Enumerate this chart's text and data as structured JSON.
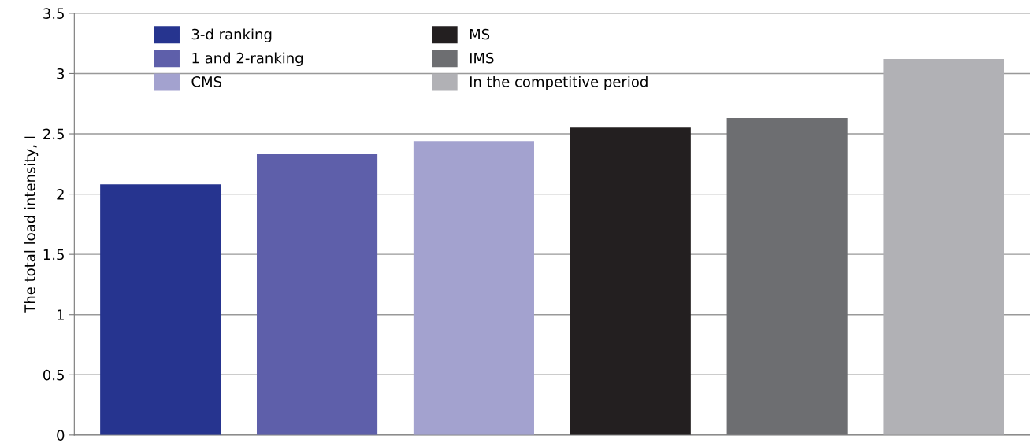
{
  "chart_data": {
    "type": "bar",
    "ylabel": "The total load intensity, I",
    "categories": [
      null,
      null,
      null,
      null,
      null,
      null
    ],
    "series": [
      {
        "name": "3-d ranking",
        "color": "#26348f",
        "values": [
          2.08,
          null,
          null,
          null,
          null,
          null
        ]
      },
      {
        "name": "1 and 2-ranking",
        "color": "#5e5faa",
        "values": [
          null,
          2.33,
          null,
          null,
          null,
          null
        ]
      },
      {
        "name": "CMS",
        "color": "#a3a2cf",
        "values": [
          null,
          null,
          2.44,
          null,
          null,
          null
        ]
      },
      {
        "name": "MS",
        "color": "#231f20",
        "values": [
          null,
          null,
          null,
          2.55,
          null,
          null
        ]
      },
      {
        "name": "IMS",
        "color": "#6d6e71",
        "values": [
          null,
          null,
          null,
          null,
          2.63,
          null
        ]
      },
      {
        "name": "In the competitive period",
        "color": "#b1b1b5",
        "values": [
          null,
          null,
          null,
          null,
          null,
          3.12
        ]
      }
    ],
    "ylim": [
      0,
      3.5
    ],
    "yticks": [
      0,
      0.5,
      1,
      1.5,
      2,
      2.5,
      3,
      3.5
    ],
    "grid": "y",
    "legend": "top left"
  }
}
